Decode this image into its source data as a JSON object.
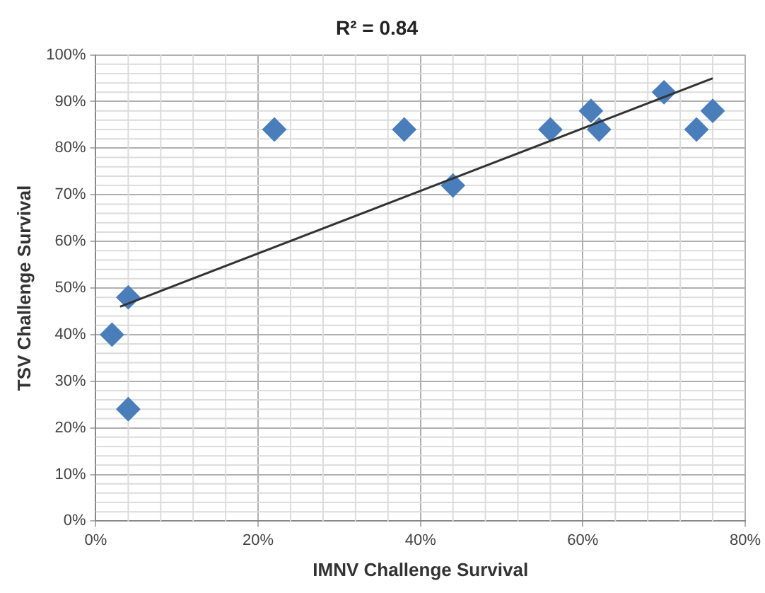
{
  "chart_data": {
    "type": "scatter",
    "title": "R² = 0.84",
    "xlabel": "IMNV Challenge Survival",
    "ylabel": "TSV Challenge Survival",
    "series": [
      {
        "color": "#4a7ebb",
        "x": [
          2,
          4,
          4,
          22,
          38,
          44,
          56,
          61,
          62,
          70,
          74,
          76
        ],
        "values": [
          40,
          48,
          24,
          84,
          84,
          72,
          84,
          88,
          84,
          92,
          84,
          88
        ],
        "marker": "diamond"
      },
      {
        "type": "line",
        "color": "#333333",
        "x": [
          3,
          76
        ],
        "values": [
          46,
          95
        ],
        "marker": "none"
      }
    ],
    "xlim": [
      0,
      80
    ],
    "xticks": [
      {
        "value": 0,
        "label": "0%"
      },
      {
        "value": 20,
        "label": "20%"
      },
      {
        "value": 40,
        "label": "40%"
      },
      {
        "value": 60,
        "label": "60%"
      },
      {
        "value": 80,
        "label": "80%"
      }
    ],
    "ylim": [
      0,
      100
    ],
    "yticks": [
      {
        "value": 0,
        "label": "0%"
      },
      {
        "value": 10,
        "label": "10%"
      },
      {
        "value": 20,
        "label": "20%"
      },
      {
        "value": 30,
        "label": "30%"
      },
      {
        "value": 40,
        "label": "40%"
      },
      {
        "value": 50,
        "label": "50%"
      },
      {
        "value": 60,
        "label": "60%"
      },
      {
        "value": 70,
        "label": "70%"
      },
      {
        "value": 80,
        "label": "80%"
      },
      {
        "value": 90,
        "label": "90%"
      },
      {
        "value": 100,
        "label": "100%"
      }
    ],
    "grid": true,
    "legend": false
  }
}
